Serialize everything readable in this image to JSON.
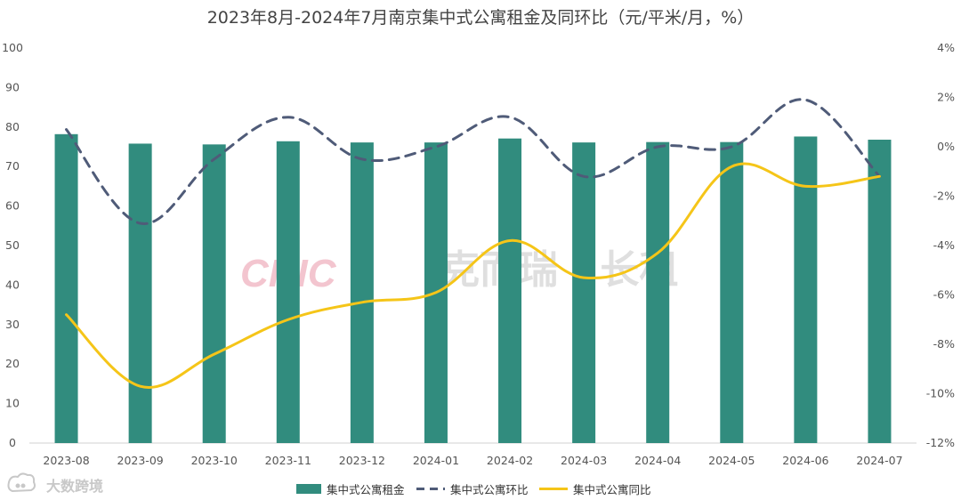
{
  "chart_data": {
    "type": "bar",
    "title": "2023年8月-2024年7月南京集中式公寓租金及同环比（元/平米/月，%）",
    "categories": [
      "2023-08",
      "2023-09",
      "2023-10",
      "2023-11",
      "2023-12",
      "2024-01",
      "2024-02",
      "2024-03",
      "2024-04",
      "2024-05",
      "2024-06",
      "2024-07"
    ],
    "ylim": [
      0,
      100
    ],
    "yticks": [
      "0",
      "10",
      "20",
      "30",
      "40",
      "50",
      "60",
      "70",
      "80",
      "90",
      "100"
    ],
    "y2lim": [
      -12,
      4
    ],
    "y2ticks": [
      "-12%",
      "-10%",
      "-8%",
      "-6%",
      "-4%",
      "-2%",
      "0%",
      "2%",
      "4%"
    ],
    "grid": false,
    "legend_position": "bottom",
    "series": [
      {
        "name": "集中式公寓租金",
        "kind": "bar",
        "axis": "left",
        "color": "#318c7e",
        "values": [
          78.2,
          75.8,
          75.6,
          76.4,
          76.1,
          76.1,
          77.1,
          76.1,
          76.2,
          76.2,
          77.6,
          76.8
        ]
      },
      {
        "name": "集中式公寓环比",
        "kind": "line",
        "style": "dashed",
        "axis": "right",
        "color": "#4f5b78",
        "values": [
          0.7,
          -3.1,
          -0.5,
          1.2,
          -0.5,
          0.0,
          1.2,
          -1.2,
          0.0,
          0.0,
          1.9,
          -1.2
        ]
      },
      {
        "name": "集中式公寓同比",
        "kind": "line",
        "style": "solid",
        "axis": "right",
        "color": "#f5c518",
        "values": [
          -6.8,
          -9.7,
          -8.4,
          -7.0,
          -6.3,
          -5.9,
          -3.8,
          -5.3,
          -4.3,
          -0.8,
          -1.6,
          -1.2
        ]
      }
    ]
  },
  "watermark": {
    "logo": "CRIC",
    "text": "克而瑞 · 长租",
    "color": "#f0b0bd",
    "text_color": "#d4d4d4"
  },
  "corner_watermark": {
    "text": "大数跨境",
    "icon": "cloud-chat-icon"
  }
}
